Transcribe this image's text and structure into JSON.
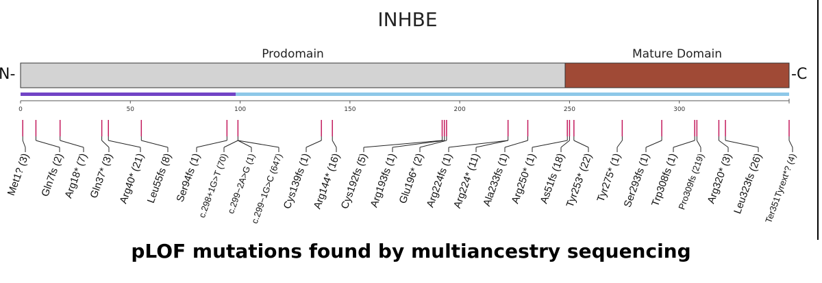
{
  "diagram": {
    "title": "INHBE",
    "n_terminus": "N-",
    "c_terminus": "-C",
    "domains": [
      {
        "label": "Prodomain",
        "start": 0,
        "end": 248,
        "color": "#d3d3d3"
      },
      {
        "label": "Mature Domain",
        "start": 248,
        "end": 350,
        "color": "#a04a36"
      }
    ],
    "bars": [
      {
        "start": 0,
        "end": 98,
        "color": "#7244c6"
      },
      {
        "start": 98,
        "end": 350,
        "color": "#8ec8e8"
      }
    ],
    "axis": {
      "min": 0,
      "max": 350,
      "ticks": [
        0,
        50,
        100,
        150,
        200,
        250,
        300
      ]
    },
    "marker_color": "#c2185b",
    "mutations": [
      {
        "label": "Met1? (3)",
        "position": 1
      },
      {
        "label": "Gln7fs (2)",
        "position": 7
      },
      {
        "label": "Arg18* (7)",
        "position": 18
      },
      {
        "label": "Gln37* (3)",
        "position": 37
      },
      {
        "label": "Arg40* (21)",
        "position": 40
      },
      {
        "label": "Leu55fs (8)",
        "position": 55
      },
      {
        "label": "Ser94fs (1)",
        "position": 94
      },
      {
        "label": "c.298+1G>T (70)",
        "position": 99
      },
      {
        "label": "c.299−2A>G (1)",
        "position": 99
      },
      {
        "label": "c.299−1G>C (647)",
        "position": 99
      },
      {
        "label": "Cys139fs (1)",
        "position": 137
      },
      {
        "label": "Arg144* (16)",
        "position": 142
      },
      {
        "label": "Cys192fs (5)",
        "position": 192
      },
      {
        "label": "Arg193fs (1)",
        "position": 193
      },
      {
        "label": "Glu196* (2)",
        "position": 194
      },
      {
        "label": "Arg224fs (1)",
        "position": 222
      },
      {
        "label": "Arg224* (11)",
        "position": 222
      },
      {
        "label": "Ala233fs (1)",
        "position": 231
      },
      {
        "label": "Arg250* (1)",
        "position": 249
      },
      {
        "label": "As51fs (18)",
        "position": 250
      },
      {
        "label": "Tyr253* (22)",
        "position": 252
      },
      {
        "label": "Tyr275* (1)",
        "position": 274
      },
      {
        "label": "Ser293fs (1)",
        "position": 292
      },
      {
        "label": "Trp308fs (1)",
        "position": 307
      },
      {
        "label": "Pro309fs (219)",
        "position": 308
      },
      {
        "label": "Arg320* (3)",
        "position": 318
      },
      {
        "label": "Leu323fs (26)",
        "position": 321
      },
      {
        "label": "Ter351Tyrext*?  (4)",
        "position": 350
      }
    ],
    "caption": "pLOF mutations found by multiancestry sequencing"
  }
}
